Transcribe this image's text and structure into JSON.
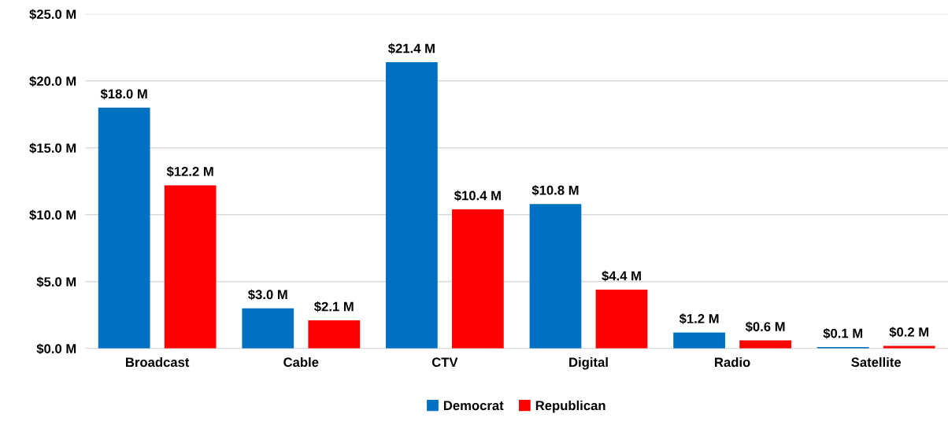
{
  "chart_data": {
    "type": "bar",
    "categories": [
      "Broadcast",
      "Cable",
      "CTV",
      "Digital",
      "Radio",
      "Satellite"
    ],
    "series": [
      {
        "name": "Democrat",
        "color": "#0070c0",
        "values": [
          18.0,
          3.0,
          21.4,
          10.8,
          1.2,
          0.1
        ],
        "value_labels": [
          "$18.0 M",
          "$3.0 M",
          "$21.4 M",
          "$10.8 M",
          "$1.2 M",
          "$0.1 M"
        ]
      },
      {
        "name": "Republican",
        "color": "#ff0000",
        "values": [
          12.2,
          2.1,
          10.4,
          4.4,
          0.6,
          0.2
        ],
        "value_labels": [
          "$12.2 M",
          "$2.1 M",
          "$10.4 M",
          "$4.4 M",
          "$0.6 M",
          "$0.2 M"
        ]
      }
    ],
    "ylim": [
      0,
      25
    ],
    "yticks": [
      {
        "value": 0,
        "label": "$0.0 M"
      },
      {
        "value": 5,
        "label": "$5.0 M"
      },
      {
        "value": 10,
        "label": "$10.0 M"
      },
      {
        "value": 15,
        "label": "$15.0 M"
      },
      {
        "value": 20,
        "label": "$20.0 M"
      },
      {
        "value": 25,
        "label": "$25.0 M"
      }
    ],
    "grid": "y",
    "legend": "bottom"
  }
}
